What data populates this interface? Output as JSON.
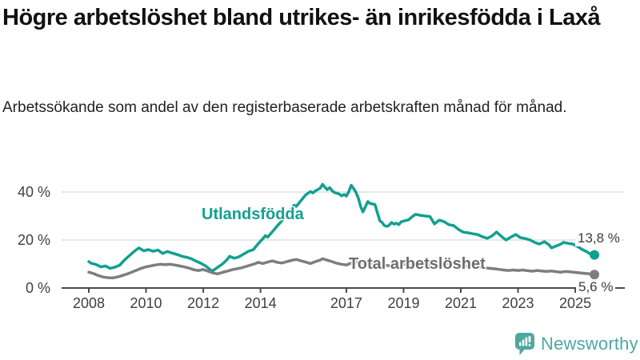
{
  "header": {
    "title": "Högre arbetslöshet bland utrikes- än inrikesfödda i Laxå",
    "subtitle": "Arbetssökande som andel av den registerbaserade arbetskraften månad för månad."
  },
  "colors": {
    "foreign_series": "#12a091",
    "total_series": "#7d7d82",
    "total_label": "#6d6d72",
    "grid": "#d8d8d8",
    "axis": "#4a4a4a",
    "tick_text": "#3f3f3f",
    "value_text": "#3c3c3c",
    "brand_teal": "#4ea8a1"
  },
  "chart_data": {
    "type": "line",
    "unit": "%",
    "grid": "horizontal-only",
    "x_axis": {
      "ticks": [
        2008,
        2010,
        2012,
        2014,
        2017,
        2019,
        2021,
        2023,
        2025
      ],
      "labels": [
        "2008",
        "2010",
        "2012",
        "2014",
        "2017",
        "2019",
        "2021",
        "2023",
        "2025"
      ],
      "range": [
        2007.05,
        2026.75
      ]
    },
    "y_axis": {
      "ticks": [
        0,
        20,
        40
      ],
      "labels": [
        "0 %",
        "20 %",
        "40 %"
      ],
      "range": [
        0,
        48
      ]
    },
    "series": [
      {
        "name": "Utlandsfödda",
        "color": "#12a091",
        "end_label": "13,8 %",
        "end_value": 13.8,
        "points": [
          [
            2008.0,
            11.0
          ],
          [
            2008.08,
            10.3
          ],
          [
            2008.25,
            9.8
          ],
          [
            2008.42,
            8.8
          ],
          [
            2008.58,
            9.2
          ],
          [
            2008.75,
            8.2
          ],
          [
            2008.92,
            8.7
          ],
          [
            2009.08,
            9.5
          ],
          [
            2009.25,
            11.7
          ],
          [
            2009.42,
            13.5
          ],
          [
            2009.58,
            15.2
          ],
          [
            2009.75,
            16.7
          ],
          [
            2009.92,
            15.5
          ],
          [
            2010.08,
            16.0
          ],
          [
            2010.25,
            15.3
          ],
          [
            2010.42,
            15.8
          ],
          [
            2010.58,
            14.4
          ],
          [
            2010.75,
            15.2
          ],
          [
            2010.92,
            14.5
          ],
          [
            2011.08,
            14.0
          ],
          [
            2011.25,
            13.2
          ],
          [
            2011.42,
            12.8
          ],
          [
            2011.58,
            12.2
          ],
          [
            2011.75,
            11.2
          ],
          [
            2011.92,
            10.3
          ],
          [
            2012.08,
            9.2
          ],
          [
            2012.25,
            7.6
          ],
          [
            2012.33,
            7.2
          ],
          [
            2012.5,
            8.6
          ],
          [
            2012.67,
            10.0
          ],
          [
            2012.83,
            11.8
          ],
          [
            2012.92,
            13.2
          ],
          [
            2013.08,
            12.4
          ],
          [
            2013.25,
            13.0
          ],
          [
            2013.42,
            14.2
          ],
          [
            2013.58,
            15.3
          ],
          [
            2013.75,
            16.0
          ],
          [
            2013.92,
            18.5
          ],
          [
            2014.08,
            20.5
          ],
          [
            2014.17,
            21.8
          ],
          [
            2014.25,
            21.2
          ],
          [
            2014.42,
            23.5
          ],
          [
            2014.58,
            25.8
          ],
          [
            2014.75,
            28.0
          ],
          [
            2014.92,
            30.5
          ],
          [
            2015.08,
            33.0
          ],
          [
            2015.17,
            34.5
          ],
          [
            2015.25,
            34.0
          ],
          [
            2015.42,
            36.5
          ],
          [
            2015.58,
            38.8
          ],
          [
            2015.75,
            40.2
          ],
          [
            2015.83,
            39.6
          ],
          [
            2015.92,
            40.5
          ],
          [
            2016.08,
            41.5
          ],
          [
            2016.17,
            43.2
          ],
          [
            2016.25,
            42.0
          ],
          [
            2016.33,
            41.0
          ],
          [
            2016.42,
            41.8
          ],
          [
            2016.5,
            40.6
          ],
          [
            2016.58,
            39.8
          ],
          [
            2016.75,
            39.2
          ],
          [
            2016.83,
            38.4
          ],
          [
            2016.92,
            39.0
          ],
          [
            2017.0,
            38.3
          ],
          [
            2017.08,
            40.0
          ],
          [
            2017.17,
            42.8
          ],
          [
            2017.25,
            41.5
          ],
          [
            2017.33,
            40.0
          ],
          [
            2017.42,
            37.4
          ],
          [
            2017.5,
            34.0
          ],
          [
            2017.58,
            31.7
          ],
          [
            2017.67,
            34.0
          ],
          [
            2017.75,
            36.0
          ],
          [
            2017.83,
            35.2
          ],
          [
            2017.92,
            35.0
          ],
          [
            2018.0,
            34.8
          ],
          [
            2018.08,
            31.5
          ],
          [
            2018.17,
            28.0
          ],
          [
            2018.25,
            27.3
          ],
          [
            2018.33,
            26.0
          ],
          [
            2018.42,
            25.7
          ],
          [
            2018.5,
            26.2
          ],
          [
            2018.58,
            27.3
          ],
          [
            2018.67,
            26.6
          ],
          [
            2018.75,
            27.0
          ],
          [
            2018.83,
            26.4
          ],
          [
            2018.92,
            27.6
          ],
          [
            2019.0,
            27.9
          ],
          [
            2019.17,
            28.4
          ],
          [
            2019.33,
            30.0
          ],
          [
            2019.42,
            30.7
          ],
          [
            2019.58,
            30.3
          ],
          [
            2019.75,
            30.0
          ],
          [
            2019.92,
            29.8
          ],
          [
            2020.08,
            26.7
          ],
          [
            2020.25,
            28.3
          ],
          [
            2020.42,
            27.6
          ],
          [
            2020.58,
            26.4
          ],
          [
            2020.75,
            26.0
          ],
          [
            2020.92,
            24.4
          ],
          [
            2021.08,
            23.3
          ],
          [
            2021.25,
            23.0
          ],
          [
            2021.42,
            22.6
          ],
          [
            2021.58,
            22.3
          ],
          [
            2021.75,
            21.4
          ],
          [
            2021.92,
            20.7
          ],
          [
            2022.08,
            21.6
          ],
          [
            2022.25,
            23.3
          ],
          [
            2022.42,
            21.5
          ],
          [
            2022.58,
            20.0
          ],
          [
            2022.75,
            21.2
          ],
          [
            2022.92,
            22.3
          ],
          [
            2023.08,
            21.0
          ],
          [
            2023.25,
            20.6
          ],
          [
            2023.42,
            20.0
          ],
          [
            2023.58,
            19.0
          ],
          [
            2023.75,
            18.3
          ],
          [
            2023.92,
            19.3
          ],
          [
            2024.08,
            18.0
          ],
          [
            2024.17,
            16.7
          ],
          [
            2024.33,
            17.5
          ],
          [
            2024.5,
            18.3
          ],
          [
            2024.58,
            19.0
          ],
          [
            2024.75,
            18.6
          ],
          [
            2024.92,
            18.3
          ],
          [
            2025.08,
            17.3
          ],
          [
            2025.25,
            16.0
          ],
          [
            2025.42,
            15.0
          ],
          [
            2025.5,
            14.3
          ],
          [
            2025.58,
            14.6
          ],
          [
            2025.67,
            13.8
          ]
        ]
      },
      {
        "name": "Total arbetslöshet",
        "color": "#7d7d82",
        "end_label": "5,6 %",
        "end_value": 5.6,
        "points": [
          [
            2008.0,
            6.6
          ],
          [
            2008.17,
            6.0
          ],
          [
            2008.33,
            5.2
          ],
          [
            2008.5,
            4.6
          ],
          [
            2008.67,
            4.3
          ],
          [
            2008.83,
            4.2
          ],
          [
            2009.0,
            4.6
          ],
          [
            2009.17,
            5.2
          ],
          [
            2009.33,
            5.8
          ],
          [
            2009.5,
            6.6
          ],
          [
            2009.67,
            7.4
          ],
          [
            2009.83,
            8.2
          ],
          [
            2010.0,
            8.8
          ],
          [
            2010.17,
            9.2
          ],
          [
            2010.33,
            9.6
          ],
          [
            2010.5,
            9.9
          ],
          [
            2010.67,
            9.7
          ],
          [
            2010.83,
            9.9
          ],
          [
            2011.0,
            9.6
          ],
          [
            2011.17,
            9.2
          ],
          [
            2011.33,
            8.8
          ],
          [
            2011.5,
            8.3
          ],
          [
            2011.67,
            7.6
          ],
          [
            2011.83,
            7.3
          ],
          [
            2012.0,
            7.7
          ],
          [
            2012.17,
            7.0
          ],
          [
            2012.33,
            6.3
          ],
          [
            2012.5,
            5.9
          ],
          [
            2012.67,
            6.5
          ],
          [
            2012.83,
            7.0
          ],
          [
            2013.0,
            7.6
          ],
          [
            2013.17,
            8.0
          ],
          [
            2013.33,
            8.4
          ],
          [
            2013.5,
            9.0
          ],
          [
            2013.67,
            9.6
          ],
          [
            2013.83,
            10.2
          ],
          [
            2013.92,
            10.7
          ],
          [
            2014.08,
            10.2
          ],
          [
            2014.25,
            10.8
          ],
          [
            2014.42,
            11.3
          ],
          [
            2014.58,
            10.7
          ],
          [
            2014.75,
            10.4
          ],
          [
            2014.92,
            11.0
          ],
          [
            2015.08,
            11.5
          ],
          [
            2015.25,
            11.9
          ],
          [
            2015.42,
            11.3
          ],
          [
            2015.58,
            10.8
          ],
          [
            2015.75,
            10.2
          ],
          [
            2015.92,
            11.0
          ],
          [
            2016.08,
            11.6
          ],
          [
            2016.17,
            12.2
          ],
          [
            2016.33,
            11.6
          ],
          [
            2016.5,
            11.0
          ],
          [
            2016.67,
            10.3
          ],
          [
            2016.83,
            9.9
          ],
          [
            2017.0,
            9.6
          ],
          [
            2017.17,
            10.4
          ],
          [
            2017.33,
            10.9
          ],
          [
            2017.5,
            10.5
          ],
          [
            2017.67,
            10.1
          ],
          [
            2017.83,
            10.3
          ],
          [
            2018.0,
            10.0
          ],
          [
            2018.25,
            9.6
          ],
          [
            2018.5,
            9.3
          ],
          [
            2018.75,
            9.5
          ],
          [
            2019.0,
            9.8
          ],
          [
            2019.25,
            10.0
          ],
          [
            2019.5,
            9.9
          ],
          [
            2019.75,
            9.7
          ],
          [
            2020.0,
            9.8
          ],
          [
            2020.25,
            10.4
          ],
          [
            2020.5,
            10.1
          ],
          [
            2020.75,
            9.8
          ],
          [
            2021.0,
            9.4
          ],
          [
            2021.25,
            9.1
          ],
          [
            2021.5,
            8.8
          ],
          [
            2021.75,
            8.5
          ],
          [
            2022.0,
            8.2
          ],
          [
            2022.25,
            7.9
          ],
          [
            2022.5,
            7.5
          ],
          [
            2022.67,
            7.3
          ],
          [
            2022.83,
            7.5
          ],
          [
            2023.0,
            7.3
          ],
          [
            2023.17,
            7.5
          ],
          [
            2023.33,
            7.2
          ],
          [
            2023.5,
            7.0
          ],
          [
            2023.67,
            7.3
          ],
          [
            2023.83,
            7.1
          ],
          [
            2024.0,
            6.9
          ],
          [
            2024.17,
            7.1
          ],
          [
            2024.33,
            6.8
          ],
          [
            2024.5,
            6.6
          ],
          [
            2024.67,
            6.9
          ],
          [
            2024.83,
            6.7
          ],
          [
            2025.0,
            6.5
          ],
          [
            2025.17,
            6.3
          ],
          [
            2025.33,
            6.1
          ],
          [
            2025.5,
            5.9
          ],
          [
            2025.67,
            5.6
          ]
        ]
      }
    ]
  },
  "footer": {
    "brand": "Newsworthy"
  }
}
